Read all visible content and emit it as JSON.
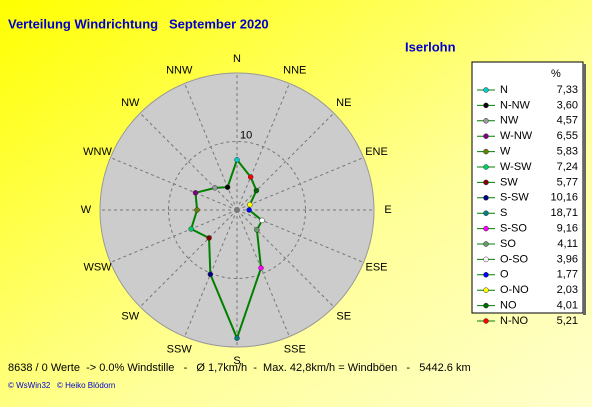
{
  "chart_data": {
    "type": "radar",
    "title": "Verteilung Windrichtung   September 2020",
    "subtitle": "Iserlohn",
    "axis_labels": [
      "N",
      "NNE",
      "NE",
      "ENE",
      "E",
      "ESE",
      "SE",
      "SSE",
      "S",
      "SSW",
      "SW",
      "WSW",
      "W",
      "WNW",
      "NW",
      "NNW"
    ],
    "legend_header": "%",
    "categories": [
      "N",
      "N-NW",
      "NW",
      "W-NW",
      "W",
      "W-SW",
      "SW",
      "S-SW",
      "S",
      "S-SO",
      "SO",
      "O-SO",
      "O",
      "O-NO",
      "NO",
      "N-NO"
    ],
    "values": [
      7.33,
      3.6,
      4.57,
      6.55,
      5.83,
      7.24,
      5.77,
      10.16,
      18.71,
      9.16,
      4.11,
      3.96,
      1.77,
      2.03,
      4.01,
      5.21
    ],
    "value_labels": [
      "7,33",
      "3,60",
      "4,57",
      "6,55",
      "5,83",
      "7,24",
      "5,77",
      "10,16",
      "18,71",
      "9,16",
      "4,11",
      "3,96",
      "1,77",
      "2,03",
      "4,01",
      "5,21"
    ],
    "colors": [
      "#00cccc",
      "#000000",
      "#999999",
      "#800080",
      "#668000",
      "#00cc66",
      "#800000",
      "#000080",
      "#008080",
      "#ff00ff",
      "#669966",
      "#ffffff",
      "#0000ff",
      "#ffff00",
      "#006600",
      "#ff0000"
    ],
    "line_color": "#008000",
    "rlim": [
      0,
      20
    ],
    "rticks": [
      10
    ],
    "footer": "8638 / 0 Werte  -> 0.0% Windstille   -   Ø 1,7km/h  -  Max. 42,8km/h = Windböen   -   5442.6 km",
    "credits": "© WsWin32   © Heiko Blödorn"
  }
}
